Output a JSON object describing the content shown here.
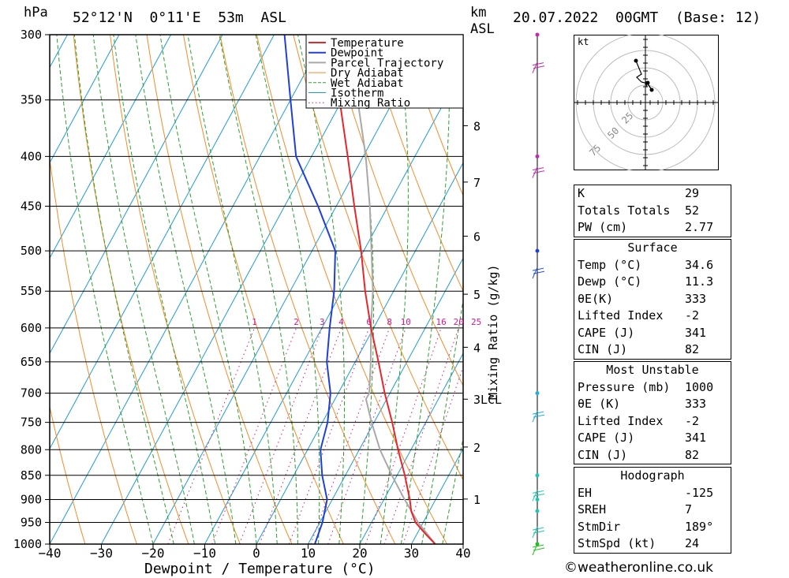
{
  "header": {
    "hpa_label": "hPa",
    "location": "52°12'N  0°11'E  53m  ASL",
    "km_label": "km",
    "asl_label": "ASL",
    "datetime": "20.07.2022  00GMT  (Base: 12)"
  },
  "chart_data": {
    "type": "skew-t",
    "xlabel": "Dewpoint / Temperature (°C)",
    "ylabel_left": "hPa",
    "ylabel_right": "Mixing Ratio (g/kg)",
    "x_ticks": [
      -40,
      -30,
      -20,
      -10,
      0,
      10,
      20,
      30,
      40
    ],
    "pressure_levels": [
      300,
      350,
      400,
      450,
      500,
      550,
      600,
      650,
      700,
      750,
      800,
      850,
      900,
      950,
      1000
    ],
    "km_ticks": [
      {
        "label": "8",
        "p": 372
      },
      {
        "label": "7",
        "p": 425
      },
      {
        "label": "6",
        "p": 483
      },
      {
        "label": "5",
        "p": 554
      },
      {
        "label": "4",
        "p": 628
      },
      {
        "label": "3",
        "p": 710
      },
      {
        "label": "2",
        "p": 795
      },
      {
        "label": "1",
        "p": 899
      }
    ],
    "lcl": {
      "label": "LCL",
      "p": 710
    },
    "mixing_ratio_labels": [
      "1",
      "2",
      "3",
      "4",
      "6",
      "8",
      "10",
      "16",
      "20",
      "25"
    ],
    "legend": [
      "Temperature",
      "Dewpoint",
      "Parcel Trajectory",
      "Dry Adiabat",
      "Wet Adiabat",
      "Isotherm",
      "Mixing Ratio"
    ],
    "colors": {
      "temperature": "#e8262a",
      "dewpoint": "#1f3fd9",
      "parcel": "#a9a9a9",
      "dry_adiabat": "#f28c28",
      "wet_adiabat": "#2ca02c",
      "isotherm": "#1e9bd7",
      "mixing_ratio": "#d01a8c"
    },
    "series": [
      {
        "name": "Temperature",
        "points": [
          [
            1000,
            34.6
          ],
          [
            975,
            31.5
          ],
          [
            950,
            28.5
          ],
          [
            925,
            26.5
          ],
          [
            900,
            25.0
          ],
          [
            850,
            21.5
          ],
          [
            800,
            17.5
          ],
          [
            750,
            13.5
          ],
          [
            700,
            9.0
          ],
          [
            650,
            4.5
          ],
          [
            600,
            -0.5
          ],
          [
            550,
            -5.5
          ],
          [
            500,
            -10.5
          ],
          [
            450,
            -16.5
          ],
          [
            400,
            -23.0
          ],
          [
            350,
            -30.5
          ],
          [
            300,
            -39.0
          ]
        ]
      },
      {
        "name": "Dewpoint",
        "points": [
          [
            1000,
            11.3
          ],
          [
            950,
            10.5
          ],
          [
            900,
            9.0
          ],
          [
            850,
            5.5
          ],
          [
            800,
            2.5
          ],
          [
            750,
            1.0
          ],
          [
            700,
            -1.5
          ],
          [
            650,
            -5.5
          ],
          [
            600,
            -8.5
          ],
          [
            550,
            -11.5
          ],
          [
            500,
            -15.5
          ],
          [
            450,
            -23.5
          ],
          [
            400,
            -33.0
          ],
          [
            350,
            -40.0
          ],
          [
            300,
            -48.0
          ]
        ]
      },
      {
        "name": "Parcel Trajectory",
        "points": [
          [
            1000,
            34.6
          ],
          [
            950,
            29.0
          ],
          [
            900,
            24.0
          ],
          [
            850,
            19.0
          ],
          [
            800,
            14.0
          ],
          [
            750,
            9.5
          ],
          [
            710,
            6.0
          ],
          [
            700,
            6.0
          ],
          [
            650,
            3.0
          ],
          [
            600,
            -0.5
          ],
          [
            550,
            -4.0
          ],
          [
            500,
            -8.5
          ],
          [
            450,
            -13.5
          ],
          [
            400,
            -19.5
          ],
          [
            350,
            -27.0
          ],
          [
            300,
            -36.5
          ]
        ]
      }
    ]
  },
  "hodograph": {
    "unit_label": "kt",
    "rings": [
      "25",
      "50",
      "75"
    ]
  },
  "indices": [
    {
      "label": "K",
      "value": "29"
    },
    {
      "label": "Totals Totals",
      "value": "52"
    },
    {
      "label": "PW (cm)",
      "value": "2.77"
    }
  ],
  "surface": {
    "title": "Surface",
    "rows": [
      {
        "label": "Temp (°C)",
        "value": "34.6"
      },
      {
        "label": "Dewp (°C)",
        "value": "11.3"
      },
      {
        "label": "θE(K)",
        "value": "333"
      },
      {
        "label": "Lifted Index",
        "value": "-2"
      },
      {
        "label": "CAPE (J)",
        "value": "341"
      },
      {
        "label": "CIN (J)",
        "value": "82"
      }
    ]
  },
  "most_unstable": {
    "title": "Most Unstable",
    "rows": [
      {
        "label": "Pressure (mb)",
        "value": "1000"
      },
      {
        "label": "θE (K)",
        "value": "333"
      },
      {
        "label": "Lifted Index",
        "value": "-2"
      },
      {
        "label": "CAPE (J)",
        "value": "341"
      },
      {
        "label": "CIN (J)",
        "value": "82"
      }
    ]
  },
  "hodograph_table": {
    "title": "Hodograph",
    "rows": [
      {
        "label": "EH",
        "value": "-125"
      },
      {
        "label": "SREH",
        "value": "7"
      },
      {
        "label": "StmDir",
        "value": "189°"
      },
      {
        "label": "StmSpd (kt)",
        "value": "24"
      }
    ]
  },
  "credit": "©weatheronline.co.uk"
}
